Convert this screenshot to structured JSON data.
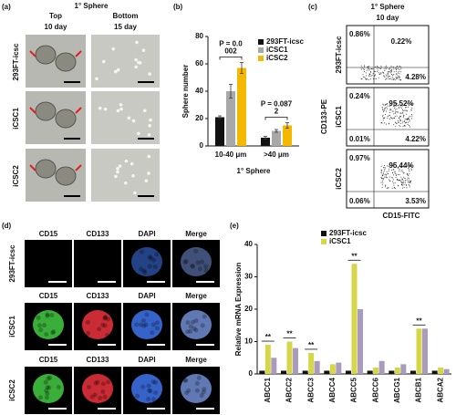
{
  "panels": {
    "a": {
      "label": "(a)",
      "title": "1° Sphere",
      "columns": [
        {
          "name": "Top",
          "time": "10 day"
        },
        {
          "name": "Bottom",
          "time": "15 day"
        }
      ],
      "rows": [
        "293FT-icsc",
        "iCSC1",
        "iCSC2"
      ]
    },
    "c": {
      "label": "(c)",
      "title": "1° Sphere",
      "time": "10 day",
      "ylabel": "CD133-PE",
      "xlabel": "CD15-FITC",
      "rows": [
        {
          "name": "293FT-icsc",
          "quadrants": {
            "ul": "0.86%",
            "ur": "0.22%",
            "lr": "4.28%"
          }
        },
        {
          "name": "iCSC1",
          "quadrants": {
            "ul": "0.24%",
            "ur": "95.52%",
            "ll": "0.01%",
            "lr": "4.22%"
          }
        },
        {
          "name": "iCSC2",
          "quadrants": {
            "ul": "0.97%",
            "ur": "95.44%",
            "ll": "0.06%",
            "lr": "3.53%"
          }
        }
      ]
    },
    "d": {
      "label": "(d)",
      "rows": [
        {
          "name": "293FT-icsc",
          "channels": [
            "CD15",
            "CD133",
            "DAPI",
            "Merge"
          ]
        },
        {
          "name": "iCSC1",
          "channels": [
            "CD15",
            "CD133",
            "DAPI",
            "Merge"
          ]
        },
        {
          "name": "iCSC2",
          "channels": [
            "CD15",
            "CD133",
            "DAPI",
            "Merge"
          ]
        }
      ]
    }
  },
  "chart_data": [
    {
      "type": "bar",
      "panel_label": "(b)",
      "ylabel": "Sphere number",
      "xlabel": "1° Sphere",
      "categories": [
        "10-40 μm",
        ">40 μm"
      ],
      "series": [
        {
          "name": "293FT-icsc",
          "color": "#111111",
          "values": [
            21,
            6
          ],
          "errors": [
            1,
            1
          ]
        },
        {
          "name": "iCSC1",
          "color": "#a8a8a8",
          "values": [
            40,
            11
          ],
          "errors": [
            5,
            1
          ]
        },
        {
          "name": "iCSC2",
          "color": "#f5b800",
          "values": [
            57,
            15
          ],
          "errors": [
            4,
            2
          ]
        }
      ],
      "p_labels": [
        [
          "P = 0.0",
          "002"
        ],
        [
          "P = 0.087",
          "2"
        ]
      ],
      "ylim": [
        0,
        80
      ],
      "yticks": [
        0,
        20,
        40,
        60,
        80
      ]
    },
    {
      "type": "bar",
      "panel_label": "(e)",
      "ylabel": "Relative mRNA Expression",
      "categories": [
        "ABCC1",
        "ABCC2",
        "ABCC3",
        "ABCC4",
        "ABCC5",
        "ABCC6",
        "ABCG1",
        "ABCB1",
        "ABCA2"
      ],
      "series": [
        {
          "name": "293FT-icsc",
          "color": "#111111",
          "values": [
            1,
            1,
            1,
            1,
            1,
            1,
            1,
            1,
            1
          ]
        },
        {
          "name": "iCSC1",
          "color": "#d6d64a",
          "values": [
            9,
            10,
            6.5,
            3,
            34,
            2,
            2,
            14,
            2
          ]
        },
        {
          "color": "#a99bbd",
          "values": [
            5,
            8,
            4,
            3.5,
            20,
            4,
            3,
            14,
            1.5
          ]
        }
      ],
      "significance": [
        "**",
        "**",
        "**",
        null,
        "**",
        null,
        null,
        "**",
        null
      ],
      "ylim": [
        0,
        40
      ],
      "yticks": [
        0,
        10,
        20,
        30,
        40
      ]
    }
  ]
}
